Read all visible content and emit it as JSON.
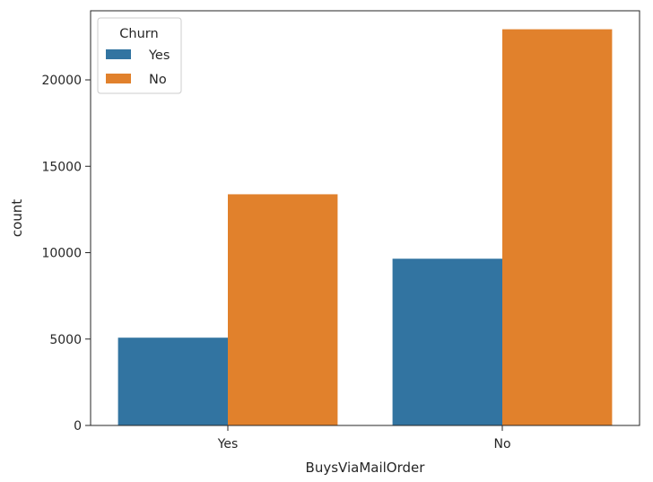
{
  "chart_data": {
    "type": "bar",
    "title": "",
    "xlabel": "BuysViaMailOrder",
    "ylabel": "count",
    "categories": [
      "Yes",
      "No"
    ],
    "series": [
      {
        "name": "Yes",
        "color": "#3274a1",
        "values": [
          5080,
          9650
        ]
      },
      {
        "name": "No",
        "color": "#e1812c",
        "values": [
          13380,
          22930
        ]
      }
    ],
    "ylim": [
      0,
      24000
    ],
    "yticks": [
      0,
      5000,
      10000,
      15000,
      20000
    ],
    "ytick_labels": [
      "0",
      "5000",
      "10000",
      "15000",
      "20000"
    ],
    "grid": false,
    "legend": {
      "title": "Churn",
      "placement": "top-left"
    }
  }
}
